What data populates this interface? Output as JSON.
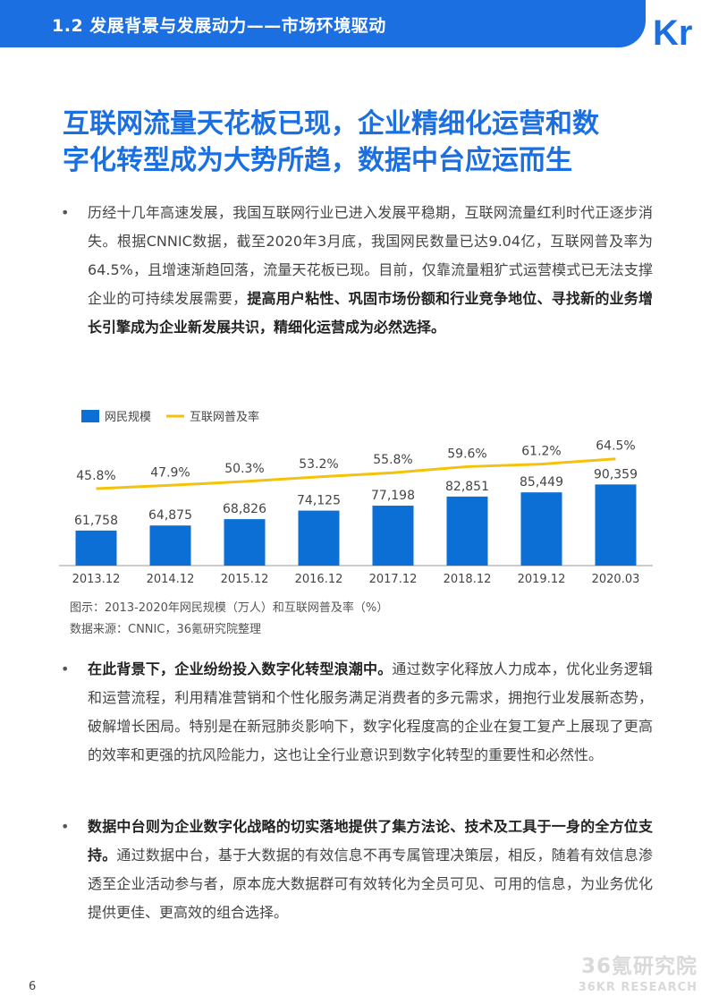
{
  "header": {
    "title": "1.2 发展背景与发展动力——市场环境驱动",
    "logo_text": "36Kr"
  },
  "main_heading": {
    "line1": "互联网流量天花板已现，企业精细化运营和数",
    "line2": "字化转型成为大势所趋，数据中台应运而生"
  },
  "bullets": [
    {
      "text": "历经十几年高速发展，我国互联网行业已进入发展平稳期，互联网流量红利时代正逐步消失。根据CNNIC数据，截至2020年3月底，我国网民数量已达9.04亿，互联网普及率为64.5%，且增速渐趋回落，流量天花板已现。目前，仅靠流量粗犷式运营模式已无法支撑企业的可持续发展需要，",
      "bold": "提高用户粘性、巩固市场份额和行业竞争地位、寻找新的业务增长引擎成为企业新发展共识，精细化运营成为必然选择。",
      "tail": ""
    },
    {
      "text": "",
      "bold": "在此背景下，企业纷纷投入数字化转型浪潮中。",
      "tail": "通过数字化释放人力成本，优化业务逻辑和运营流程，利用精准营销和个性化服务满足消费者的多元需求，拥抱行业发展新态势，破解增长困局。特别是在新冠肺炎影响下，数字化程度高的企业在复工复产上展现了更高的效率和更强的抗风险能力，这也让全行业意识到数字化转型的重要性和必然性。"
    },
    {
      "text": "",
      "bold": "数据中台则为企业数字化战略的切实落地提供了集方法论、技术及工具于一身的全方位支持。",
      "tail": "通过数据中台，基于大数据的有效信息不再专属管理决策层，相反，随着有效信息渗透至企业活动参与者，原本庞大数据群可有效转化为全员可见、可用的信息，为业务优化提供更佳、更高效的组合选择。"
    }
  ],
  "chart_data": {
    "type": "bar",
    "categories": [
      "2013.12",
      "2014.12",
      "2015.12",
      "2016.12",
      "2017.12",
      "2018.12",
      "2019.12",
      "2020.03"
    ],
    "series": [
      {
        "name": "网民规模",
        "type": "bar",
        "values": [
          61758,
          64875,
          68826,
          74125,
          77198,
          82851,
          85449,
          90359
        ],
        "labels": [
          "61,758",
          "64,875",
          "68,826",
          "74,125",
          "77,198",
          "82,851",
          "85,449",
          "90,359"
        ],
        "color": "#0b6fd6"
      },
      {
        "name": "互联网普及率",
        "type": "line",
        "values": [
          45.8,
          47.9,
          50.3,
          53.2,
          55.8,
          59.6,
          61.2,
          64.5
        ],
        "labels": [
          "45.8%",
          "47.9%",
          "50.3%",
          "53.2%",
          "55.8%",
          "59.6%",
          "61.2%",
          "64.5%"
        ],
        "color": "#f4c20d"
      }
    ],
    "legend_position": "top-left",
    "grid": false
  },
  "captions": {
    "figure": "图示：2013-2020年网民规模（万人）和互联网普及率（%）",
    "source": "数据来源：CNNIC，36氪研究院整理"
  },
  "watermark": {
    "cn": "36氪研究院",
    "en": "36KR RESEARCH"
  },
  "page_number": "6"
}
